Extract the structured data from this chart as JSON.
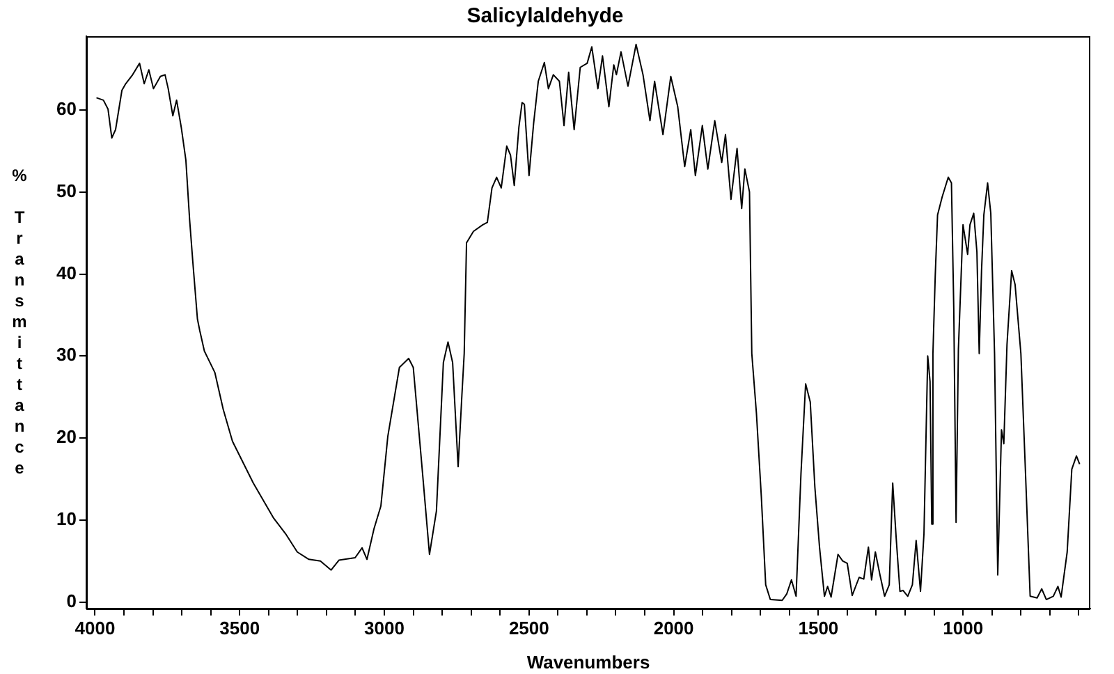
{
  "chart_data": {
    "type": "line",
    "title": "Salicylaldehyde",
    "xlabel": "Wavenumbers",
    "ylabel": "% Transmittance",
    "marker": "none",
    "xlim": [
      4030,
      560
    ],
    "ylim": [
      -0.8,
      69
    ],
    "xticks": [
      4000,
      {
        "value": 3900,
        "label": null
      },
      {
        "value": 3800,
        "label": null
      },
      {
        "value": 3700,
        "label": null
      },
      {
        "value": 3600,
        "label": null
      },
      3500,
      {
        "value": 3400,
        "label": null
      },
      {
        "value": 3300,
        "label": null
      },
      {
        "value": 3200,
        "label": null
      },
      {
        "value": 3100,
        "label": null
      },
      3000,
      {
        "value": 2900,
        "label": null
      },
      {
        "value": 2800,
        "label": null
      },
      {
        "value": 2700,
        "label": null
      },
      {
        "value": 2600,
        "label": null
      },
      2500,
      {
        "value": 2400,
        "label": null
      },
      {
        "value": 2300,
        "label": null
      },
      {
        "value": 2200,
        "label": null
      },
      {
        "value": 2100,
        "label": null
      },
      2000,
      {
        "value": 1900,
        "label": null
      },
      {
        "value": 1800,
        "label": null
      },
      {
        "value": 1700,
        "label": null
      },
      {
        "value": 1600,
        "label": null
      },
      1500,
      {
        "value": 1400,
        "label": null
      },
      {
        "value": 1300,
        "label": null
      },
      {
        "value": 1200,
        "label": null
      },
      {
        "value": 1100,
        "label": null
      },
      1000,
      {
        "value": 900,
        "label": null
      },
      {
        "value": 800,
        "label": null
      },
      {
        "value": 700,
        "label": null
      },
      {
        "value": 600,
        "label": null
      }
    ],
    "yticks": [
      0,
      10,
      20,
      30,
      40,
      50,
      60
    ],
    "x": [
      3995,
      3971,
      3955,
      3942,
      3929,
      3907,
      3894,
      3870,
      3846,
      3830,
      3814,
      3798,
      3774,
      3758,
      3747,
      3731,
      3718,
      3702,
      3686,
      3673,
      3662,
      3646,
      3638,
      3622,
      3586,
      3557,
      3525,
      3453,
      3384,
      3341,
      3301,
      3261,
      3221,
      3184,
      3157,
      3101,
      3077,
      3060,
      3036,
      3012,
      2988,
      2948,
      2916,
      2900,
      2868,
      2844,
      2820,
      2796,
      2780,
      2764,
      2745,
      2732,
      2724,
      2716,
      2692,
      2660,
      2644,
      2628,
      2612,
      2596,
      2577,
      2564,
      2551,
      2535,
      2524,
      2516,
      2500,
      2484,
      2468,
      2447,
      2433,
      2416,
      2395,
      2379,
      2363,
      2344,
      2323,
      2299,
      2283,
      2262,
      2246,
      2224,
      2207,
      2198,
      2182,
      2158,
      2130,
      2106,
      2082,
      2066,
      2037,
      2010,
      1986,
      1962,
      1941,
      1925,
      1901,
      1882,
      1858,
      1834,
      1821,
      1802,
      1781,
      1765,
      1754,
      1738,
      1730,
      1714,
      1697,
      1682,
      1666,
      1625,
      1609,
      1593,
      1577,
      1560,
      1544,
      1528,
      1512,
      1496,
      1479,
      1468,
      1456,
      1432,
      1416,
      1400,
      1383,
      1359,
      1343,
      1327,
      1316,
      1303,
      1287,
      1271,
      1255,
      1243,
      1231,
      1218,
      1207,
      1191,
      1175,
      1162,
      1147,
      1135,
      1122,
      1114,
      1108,
      1104,
      1096,
      1088,
      1072,
      1051,
      1040,
      1032,
      1024,
      1016,
      1000,
      984,
      976,
      963,
      952,
      944,
      936,
      928,
      915,
      904,
      891,
      880,
      867,
      859,
      848,
      832,
      820,
      800,
      784,
      768,
      744,
      728,
      712,
      688,
      672,
      661,
      640,
      624,
      608,
      597
    ],
    "series": [
      {
        "color": "#000000",
        "values": [
          61.5,
          61.2,
          60.1,
          56.6,
          57.6,
          62.4,
          63.2,
          64.3,
          65.7,
          63.2,
          64.9,
          62.6,
          64.1,
          64.3,
          62.6,
          59.3,
          61.2,
          57.9,
          53.9,
          46.6,
          41.5,
          34.5,
          33.1,
          30.6,
          28.0,
          23.5,
          19.6,
          14.5,
          10.3,
          8.3,
          6.1,
          5.2,
          5.0,
          3.9,
          5.1,
          5.4,
          6.6,
          5.2,
          8.9,
          11.7,
          20.2,
          28.6,
          29.7,
          28.6,
          15.7,
          5.8,
          11.1,
          29.2,
          31.7,
          29.2,
          16.5,
          25.2,
          30.3,
          43.8,
          45.2,
          46.0,
          46.3,
          50.5,
          51.8,
          50.5,
          55.6,
          54.5,
          50.8,
          57.9,
          60.9,
          60.7,
          52.0,
          58.4,
          63.5,
          65.8,
          62.6,
          64.3,
          63.5,
          58.1,
          64.6,
          57.6,
          65.2,
          65.7,
          67.7,
          62.6,
          66.6,
          60.4,
          65.5,
          64.3,
          67.1,
          62.9,
          68.0,
          64.3,
          58.7,
          63.5,
          57.0,
          64.1,
          60.4,
          53.1,
          57.6,
          52.0,
          58.1,
          52.8,
          58.7,
          53.6,
          57.0,
          49.1,
          55.3,
          48.0,
          52.8,
          50.0,
          30.3,
          23.0,
          12.8,
          2.1,
          0.3,
          0.2,
          1.0,
          2.7,
          0.7,
          15.7,
          26.6,
          24.4,
          14.0,
          6.7,
          0.7,
          1.9,
          0.6,
          5.8,
          5.0,
          4.7,
          0.8,
          3.0,
          2.8,
          6.7,
          2.7,
          6.1,
          3.3,
          0.7,
          2.1,
          14.5,
          7.8,
          1.3,
          1.4,
          0.7,
          2.1,
          7.5,
          1.3,
          8.3,
          30.0,
          26.9,
          9.5,
          30.3,
          39.8,
          47.2,
          49.4,
          51.8,
          51.1,
          35.9,
          9.7,
          30.8,
          46.0,
          42.4,
          46.0,
          47.4,
          42.7,
          30.3,
          40.4,
          47.2,
          51.1,
          47.4,
          30.3,
          3.3,
          21.0,
          19.3,
          31.4,
          40.4,
          38.7,
          30.3,
          15.7,
          0.7,
          0.5,
          1.6,
          0.3,
          0.7,
          1.9,
          0.6,
          6.1,
          16.2,
          17.8,
          16.8
        ]
      }
    ]
  }
}
